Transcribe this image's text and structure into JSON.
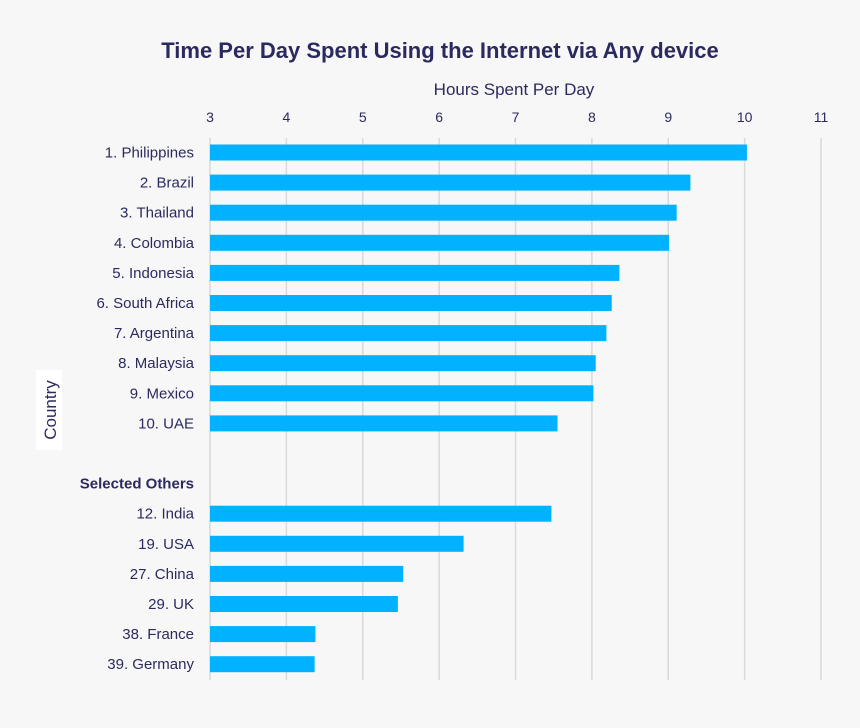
{
  "chart_data": {
    "type": "bar",
    "orientation": "horizontal",
    "title": "Time Per Day Spent Using the Internet via Any device",
    "xlabel": "Hours Spent Per Day",
    "ylabel": "Country",
    "xlim": [
      3,
      11
    ],
    "x_ticks": [
      3,
      4,
      5,
      6,
      7,
      8,
      9,
      10,
      11
    ],
    "grid": true,
    "bar_color": "#00b2ff",
    "groups": [
      {
        "label": "",
        "categories": [
          "1. Philippines",
          "2. Brazil",
          "3. Thailand",
          "4. Colombia",
          "5. Indonesia",
          "6. South Africa",
          "7. Argentina",
          "8. Malaysia",
          "9. Mexico",
          "10. UAE"
        ],
        "values": [
          10.03,
          9.29,
          9.11,
          9.01,
          8.36,
          8.26,
          8.19,
          8.05,
          8.02,
          7.55
        ]
      },
      {
        "label": "Selected Others",
        "categories": [
          "12. India",
          "19. USA",
          "27. China",
          "29. UK",
          "38. France",
          "39. Germany"
        ],
        "values": [
          7.47,
          6.32,
          5.53,
          5.46,
          4.38,
          4.37
        ]
      }
    ]
  }
}
